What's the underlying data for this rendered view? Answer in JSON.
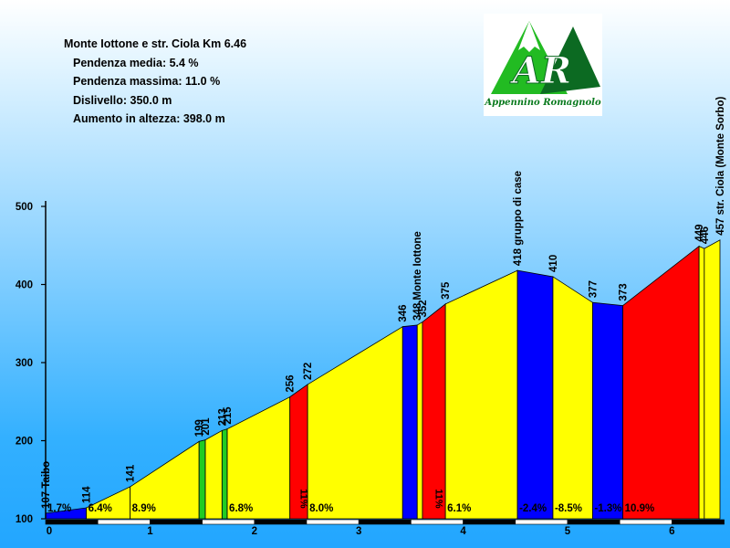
{
  "info": {
    "title": "Monte Iottone e str. Ciola Km 6.46",
    "line1": "Pendenza media: 5.4 %",
    "line2": "Pendenza massima: 11.0 %",
    "line3": "Dislivello: 350.0 m",
    "line4": "Aumento in altezza: 398.0 m"
  },
  "logo": {
    "letters": "AR",
    "caption": "Appennino Romagnolo"
  },
  "colors": {
    "yellow": "#ffff00",
    "red": "#ff0000",
    "blue": "#0000ff",
    "green": "#22cc22",
    "outline": "#000000"
  },
  "chart_data": {
    "type": "area",
    "xlim": [
      0,
      6.46
    ],
    "ylim": [
      100,
      500
    ],
    "x_ticks": [
      0,
      1,
      2,
      3,
      4,
      5,
      6
    ],
    "y_ticks": [
      100,
      200,
      300,
      400,
      500
    ],
    "points": [
      {
        "km": 0.0,
        "alt": 107,
        "label": "107 Taibo"
      },
      {
        "km": 0.39,
        "alt": 114,
        "label": "114"
      },
      {
        "km": 0.81,
        "alt": 141,
        "label": "141"
      },
      {
        "km": 1.47,
        "alt": 199,
        "label": "199"
      },
      {
        "km": 1.53,
        "alt": 201,
        "label": "201"
      },
      {
        "km": 1.69,
        "alt": 213,
        "label": "213"
      },
      {
        "km": 1.74,
        "alt": 215,
        "label": "215"
      },
      {
        "km": 2.34,
        "alt": 256,
        "label": "256"
      },
      {
        "km": 2.51,
        "alt": 272,
        "label": "272"
      },
      {
        "km": 3.42,
        "alt": 346,
        "label": "346"
      },
      {
        "km": 3.56,
        "alt": 348,
        "label": "348 Monte Iottone"
      },
      {
        "km": 3.61,
        "alt": 352,
        "label": "352"
      },
      {
        "km": 3.83,
        "alt": 375,
        "label": "375"
      },
      {
        "km": 4.52,
        "alt": 418,
        "label": "418 gruppo di case"
      },
      {
        "km": 4.86,
        "alt": 410,
        "label": "410"
      },
      {
        "km": 5.24,
        "alt": 377,
        "label": "377"
      },
      {
        "km": 5.53,
        "alt": 373,
        "label": "373"
      },
      {
        "km": 6.26,
        "alt": 449,
        "label": "449"
      },
      {
        "km": 6.31,
        "alt": 446,
        "label": "446"
      },
      {
        "km": 6.46,
        "alt": 457,
        "label": "457 str. Ciola (Monte Sorbo)"
      }
    ],
    "segments": [
      {
        "grade": "1.7%",
        "color": "blue"
      },
      {
        "grade": "6.4%",
        "color": "yellow"
      },
      {
        "grade": "8.9%",
        "color": "yellow"
      },
      {
        "grade": "",
        "color": "green"
      },
      {
        "grade": "",
        "color": "yellow"
      },
      {
        "grade": "",
        "color": "green"
      },
      {
        "grade": "6.8%",
        "color": "yellow"
      },
      {
        "grade": "11%",
        "color": "red",
        "vertical": true
      },
      {
        "grade": "8.0%",
        "color": "yellow"
      },
      {
        "grade": "",
        "color": "blue"
      },
      {
        "grade": "",
        "color": "yellow"
      },
      {
        "grade": "11%",
        "color": "red",
        "vertical": true
      },
      {
        "grade": "6.1%",
        "color": "yellow"
      },
      {
        "grade": "-2.4%",
        "color": "blue"
      },
      {
        "grade": "-8.5%",
        "color": "yellow"
      },
      {
        "grade": "-1.3%",
        "color": "blue"
      },
      {
        "grade": "10.9%",
        "color": "red"
      },
      {
        "grade": "",
        "color": "yellow"
      },
      {
        "grade": "",
        "color": "yellow"
      }
    ]
  }
}
